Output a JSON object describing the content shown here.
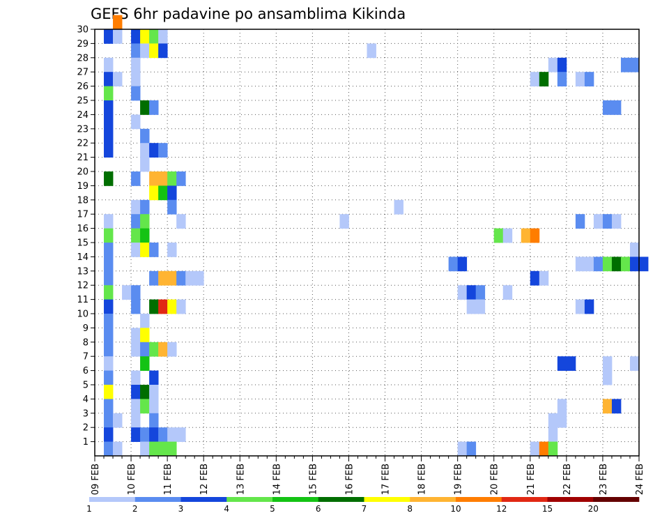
{
  "chart_data": {
    "type": "heatmap",
    "title": "GEFS 6hr padavine po ansamblima Kikinda",
    "xlabel": "",
    "ylabel": "",
    "x_tick_labels": [
      "09 FEB",
      "10 FEB",
      "11 FEB",
      "12 FEB",
      "13 FEB",
      "14 FEB",
      "15 FEB",
      "16 FEB",
      "17 FEB",
      "18 FEB",
      "19 FEB",
      "20 FEB",
      "21 FEB",
      "22 FEB",
      "23 FEB",
      "24 FEB"
    ],
    "x_unit": "6-hour step (4 per day)",
    "y_tick_labels": [
      "1",
      "2",
      "3",
      "4",
      "5",
      "6",
      "7",
      "8",
      "9",
      "10",
      "11",
      "12",
      "13",
      "14",
      "15",
      "16",
      "17",
      "18",
      "19",
      "20",
      "21",
      "22",
      "23",
      "24",
      "25",
      "26",
      "27",
      "28",
      "29",
      "30"
    ],
    "y_range": [
      0,
      30
    ],
    "grid": true,
    "legend": {
      "placement": "bottom",
      "levels": [
        "1",
        "2",
        "3",
        "4",
        "5",
        "6",
        "7",
        "8",
        "10",
        "12",
        "15",
        "20"
      ],
      "colors": [
        "#b4c8fa",
        "#5a8cf0",
        "#1446dc",
        "#64e64b",
        "#14c314",
        "#006e00",
        "#ffff00",
        "#ffb432",
        "#ff7d00",
        "#e12814",
        "#a00000",
        "#640000"
      ]
    },
    "cells": [
      [
        2,
        30,
        8
      ],
      [
        1,
        29,
        2
      ],
      [
        2,
        29,
        0
      ],
      [
        4,
        29,
        2
      ],
      [
        5,
        29,
        6
      ],
      [
        6,
        29,
        3
      ],
      [
        7,
        29,
        0
      ],
      [
        4,
        28,
        1
      ],
      [
        5,
        28,
        0
      ],
      [
        6,
        28,
        6
      ],
      [
        7,
        28,
        2
      ],
      [
        30,
        28,
        0
      ],
      [
        1,
        27,
        0
      ],
      [
        4,
        27,
        0
      ],
      [
        50,
        27,
        0
      ],
      [
        51,
        27,
        2
      ],
      [
        58,
        27,
        1
      ],
      [
        59,
        27,
        1
      ],
      [
        1,
        26,
        2
      ],
      [
        2,
        26,
        0
      ],
      [
        4,
        26,
        0
      ],
      [
        48,
        26,
        0
      ],
      [
        49,
        26,
        5
      ],
      [
        51,
        26,
        1
      ],
      [
        53,
        26,
        0
      ],
      [
        54,
        26,
        1
      ],
      [
        1,
        25,
        3
      ],
      [
        4,
        25,
        1
      ],
      [
        1,
        24,
        2
      ],
      [
        5,
        24,
        5
      ],
      [
        6,
        24,
        1
      ],
      [
        56,
        24,
        1
      ],
      [
        57,
        24,
        1
      ],
      [
        1,
        23,
        2
      ],
      [
        4,
        23,
        0
      ],
      [
        1,
        22,
        2
      ],
      [
        5,
        22,
        1
      ],
      [
        1,
        21,
        2
      ],
      [
        5,
        21,
        0
      ],
      [
        6,
        21,
        2
      ],
      [
        7,
        21,
        1
      ],
      [
        5,
        20,
        0
      ],
      [
        1,
        19,
        5
      ],
      [
        4,
        19,
        1
      ],
      [
        6,
        19,
        7
      ],
      [
        7,
        19,
        7
      ],
      [
        8,
        19,
        3
      ],
      [
        9,
        19,
        1
      ],
      [
        6,
        18,
        6
      ],
      [
        7,
        18,
        4
      ],
      [
        8,
        18,
        2
      ],
      [
        4,
        17,
        0
      ],
      [
        5,
        17,
        1
      ],
      [
        8,
        17,
        1
      ],
      [
        33,
        17,
        0
      ],
      [
        1,
        16,
        0
      ],
      [
        4,
        16,
        1
      ],
      [
        5,
        16,
        3
      ],
      [
        9,
        16,
        0
      ],
      [
        27,
        16,
        0
      ],
      [
        53,
        16,
        1
      ],
      [
        55,
        16,
        0
      ],
      [
        56,
        16,
        1
      ],
      [
        57,
        16,
        0
      ],
      [
        1,
        15,
        3
      ],
      [
        4,
        15,
        3
      ],
      [
        5,
        15,
        4
      ],
      [
        44,
        15,
        3
      ],
      [
        45,
        15,
        0
      ],
      [
        47,
        15,
        7
      ],
      [
        48,
        15,
        8
      ],
      [
        1,
        14,
        1
      ],
      [
        4,
        14,
        0
      ],
      [
        5,
        14,
        6
      ],
      [
        6,
        14,
        1
      ],
      [
        8,
        14,
        0
      ],
      [
        59,
        14,
        0
      ],
      [
        1,
        13,
        1
      ],
      [
        39,
        13,
        1
      ],
      [
        40,
        13,
        2
      ],
      [
        53,
        13,
        0
      ],
      [
        54,
        13,
        0
      ],
      [
        55,
        13,
        1
      ],
      [
        56,
        13,
        3
      ],
      [
        57,
        13,
        5
      ],
      [
        58,
        13,
        3
      ],
      [
        59,
        13,
        2
      ],
      [
        60,
        13,
        2
      ],
      [
        1,
        12,
        1
      ],
      [
        6,
        12,
        1
      ],
      [
        7,
        12,
        7
      ],
      [
        8,
        12,
        7
      ],
      [
        9,
        12,
        1
      ],
      [
        10,
        12,
        0
      ],
      [
        11,
        12,
        0
      ],
      [
        48,
        12,
        2
      ],
      [
        49,
        12,
        0
      ],
      [
        1,
        11,
        3
      ],
      [
        3,
        11,
        0
      ],
      [
        4,
        11,
        1
      ],
      [
        40,
        11,
        0
      ],
      [
        41,
        11,
        2
      ],
      [
        42,
        11,
        1
      ],
      [
        45,
        11,
        0
      ],
      [
        1,
        10,
        2
      ],
      [
        4,
        10,
        1
      ],
      [
        6,
        10,
        5
      ],
      [
        7,
        10,
        9
      ],
      [
        8,
        10,
        6
      ],
      [
        9,
        10,
        0
      ],
      [
        41,
        10,
        0
      ],
      [
        42,
        10,
        0
      ],
      [
        53,
        10,
        0
      ],
      [
        54,
        10,
        2
      ],
      [
        1,
        9,
        1
      ],
      [
        5,
        9,
        0
      ],
      [
        1,
        8,
        1
      ],
      [
        4,
        8,
        0
      ],
      [
        5,
        8,
        6
      ],
      [
        1,
        7,
        1
      ],
      [
        4,
        7,
        0
      ],
      [
        5,
        7,
        1
      ],
      [
        6,
        7,
        3
      ],
      [
        7,
        7,
        7
      ],
      [
        8,
        7,
        0
      ],
      [
        1,
        6,
        0
      ],
      [
        5,
        6,
        4
      ],
      [
        51,
        6,
        2
      ],
      [
        52,
        6,
        2
      ],
      [
        56,
        6,
        0
      ],
      [
        59,
        6,
        0
      ],
      [
        1,
        5,
        1
      ],
      [
        4,
        5,
        0
      ],
      [
        6,
        5,
        2
      ],
      [
        56,
        5,
        0
      ],
      [
        1,
        4,
        6
      ],
      [
        4,
        4,
        2
      ],
      [
        5,
        4,
        5
      ],
      [
        6,
        4,
        0
      ],
      [
        1,
        3,
        1
      ],
      [
        4,
        3,
        0
      ],
      [
        5,
        3,
        3
      ],
      [
        6,
        3,
        0
      ],
      [
        51,
        3,
        0
      ],
      [
        56,
        3,
        7
      ],
      [
        57,
        3,
        2
      ],
      [
        1,
        2,
        1
      ],
      [
        2,
        2,
        0
      ],
      [
        4,
        2,
        0
      ],
      [
        6,
        2,
        1
      ],
      [
        50,
        2,
        0
      ],
      [
        51,
        2,
        0
      ],
      [
        1,
        1,
        2
      ],
      [
        4,
        1,
        2
      ],
      [
        5,
        1,
        1
      ],
      [
        6,
        1,
        2
      ],
      [
        7,
        1,
        1
      ],
      [
        8,
        1,
        0
      ],
      [
        9,
        1,
        0
      ],
      [
        50,
        1,
        0
      ],
      [
        1,
        0,
        1
      ],
      [
        2,
        0,
        0
      ],
      [
        5,
        0,
        0
      ],
      [
        6,
        0,
        3
      ],
      [
        7,
        0,
        3
      ],
      [
        8,
        0,
        3
      ],
      [
        40,
        0,
        0
      ],
      [
        41,
        0,
        1
      ],
      [
        48,
        0,
        0
      ],
      [
        49,
        0,
        8
      ],
      [
        50,
        0,
        3
      ]
    ]
  }
}
